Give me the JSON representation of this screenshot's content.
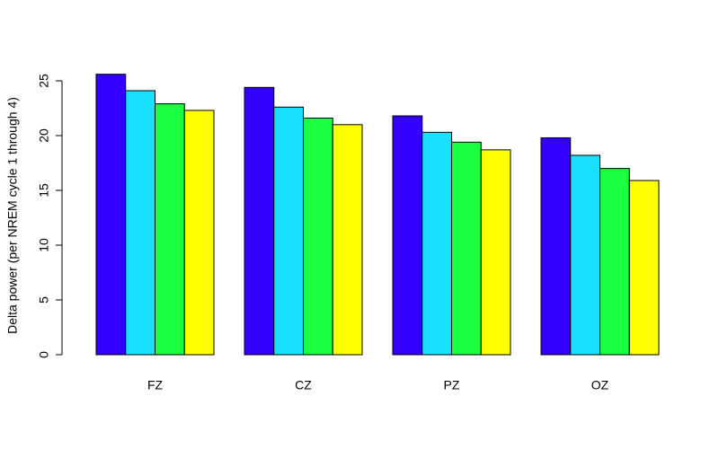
{
  "chart_data": {
    "type": "bar",
    "y_label": "Delta power (per NREM cycle 1 through 4)",
    "categories": [
      "FZ",
      "CZ",
      "PZ",
      "OZ"
    ],
    "series": [
      {
        "color": "#3300ff",
        "values": [
          25.6,
          24.4,
          21.8,
          19.8
        ]
      },
      {
        "color": "#1ae0ff",
        "values": [
          24.1,
          22.6,
          20.3,
          18.2
        ]
      },
      {
        "color": "#1aff40",
        "values": [
          22.9,
          21.6,
          19.4,
          17.0
        ]
      },
      {
        "color": "#ffff00",
        "values": [
          22.3,
          21.0,
          18.7,
          15.9
        ]
      }
    ],
    "ylim": [
      0,
      26
    ],
    "yticks": [
      0,
      5,
      10,
      15,
      20,
      25
    ],
    "grid": false
  }
}
